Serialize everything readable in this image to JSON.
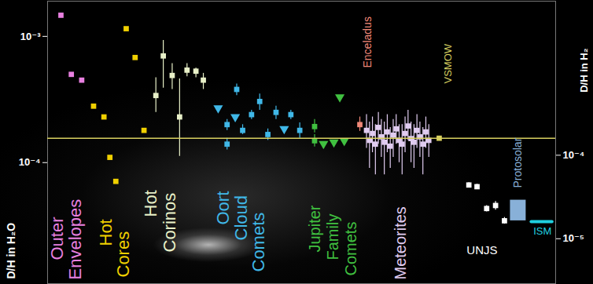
{
  "chart_data": {
    "type": "scatter",
    "log": "y",
    "grid": false,
    "tick_labels": "y",
    "xlim": [
      60,
      745
    ],
    "ylim": [
      1.1e-05,
      0.0019
    ],
    "yticks": [
      {
        "value": 0.001,
        "label": "10⁻³"
      },
      {
        "value": 0.0001,
        "label": "10⁻⁴"
      }
    ],
    "ylabel": "D/H in H₂O",
    "y2lim": [
      2.9e-06,
      0.007
    ],
    "y2ticks": [
      {
        "value": 0.0001,
        "label": "10⁻⁴"
      },
      {
        "value": 1e-05,
        "label": "10⁻⁵"
      }
    ],
    "y2label": "D/H in H₂",
    "series": [
      {
        "name": "Outer Envelopes",
        "color": "#e880e0",
        "marker": "square",
        "x": [
          78,
          92,
          106
        ],
        "values": [
          0.00147,
          0.0005,
          0.00045
        ]
      },
      {
        "name": "Hot Cores",
        "color": "#f0d000",
        "marker": "square",
        "x": [
          122,
          136,
          144,
          152,
          166,
          178,
          190
        ],
        "values": [
          0.00028,
          0.00023,
          0.00011,
          7.1e-05,
          0.00115,
          0.00068,
          0.00018
        ]
      },
      {
        "name": "Hot Corinos",
        "color": "#e8f0c8",
        "marker": "square",
        "x": [
          206,
          216,
          228,
          238,
          248,
          260,
          270
        ],
        "values": [
          0.00034,
          0.0007,
          0.00049,
          0.00023,
          0.00054,
          0.00053,
          0.00045
        ],
        "low": [
          0.00025,
          0.00039,
          0.00038,
          0.000112,
          0.00048,
          0.00047,
          0.00038
        ],
        "high": [
          0.00047,
          0.00093,
          0.00061,
          0.00046,
          0.00061,
          0.00056,
          0.00051
        ]
      },
      {
        "name": "Oort Cloud Comets",
        "color": "#40b8e8",
        "marker": "square",
        "x": [
          302,
          302,
          315,
          323,
          335,
          346,
          357,
          368,
          388,
          400
        ],
        "values": [
          0.0002,
          0.00014,
          0.00038,
          0.00018,
          0.00024,
          0.000305,
          0.000167,
          0.00025,
          0.00024,
          0.00018
        ],
        "low": [
          0.00018,
          0.000126,
          0.00034,
          0.000167,
          0.00022,
          0.00026,
          0.00015,
          0.00022,
          0.00022,
          0.000156
        ],
        "high": [
          0.00022,
          0.000156,
          0.00042,
          0.0002,
          0.00026,
          0.00035,
          0.000185,
          0.00028,
          0.00026,
          0.000207
        ]
      },
      {
        "name": "Oort Cloud Comets",
        "color": "#40b8e8",
        "marker": "triangle-down",
        "x": [
          290,
          313,
          379
        ],
        "values": [
          0.00027,
          0.00023,
          0.000185
        ]
      },
      {
        "name": "Jupiter Family Comets",
        "color": "#40c040",
        "marker": "square",
        "x": [
          420,
          420
        ],
        "values": [
          0.000193,
          0.000149
        ],
        "low": [
          0.000172,
          0.000133
        ],
        "high": [
          0.00022,
          0.000167
        ]
      },
      {
        "name": "Jupiter Family Comets",
        "color": "#40c040",
        "marker": "triangle-down",
        "x": [
          432,
          446,
          454,
          460
        ],
        "values": [
          0.000141,
          0.000145,
          0.00033,
          0.000149
        ]
      },
      {
        "name": "Enceladus",
        "color": "#f08878",
        "marker": "square",
        "x": [
          481
        ],
        "values": [
          0.0002
        ],
        "low": [
          0.000177
        ],
        "high": [
          0.00023
        ]
      },
      {
        "name": "Meteorites",
        "color": "#e0ccf0",
        "marker": "square",
        "x": [
          490,
          494,
          498,
          502,
          506,
          510,
          514,
          518,
          522,
          526,
          530,
          534,
          538,
          542,
          546,
          550,
          554,
          558,
          562,
          566,
          570,
          574
        ],
        "values": [
          0.00018,
          0.00015,
          0.00017,
          0.00014,
          0.00019,
          0.00016,
          0.000145,
          0.000175,
          0.000135,
          0.000165,
          0.000185,
          0.00015,
          0.00014,
          0.00017,
          0.000195,
          0.000155,
          0.000145,
          0.00018,
          0.00016,
          0.00014,
          0.000175,
          0.00015
        ],
        "low": [
          0.00013,
          9e-05,
          0.00012,
          8e-05,
          0.00014,
          0.00011,
          8e-05,
          0.00012,
          9e-05,
          0.00011,
          0.00014,
          0.0001,
          8e-05,
          0.00012,
          0.00015,
          0.0001,
          9e-05,
          0.00013,
          0.00011,
          8e-05,
          0.00013,
          0.00011
        ],
        "high": [
          0.00024,
          0.00021,
          0.00023,
          0.0002,
          0.00025,
          0.00022,
          0.00021,
          0.00024,
          0.00019,
          0.00022,
          0.00024,
          0.0002,
          0.0002,
          0.00023,
          0.00026,
          0.00021,
          0.0002,
          0.00024,
          0.00021,
          0.00019,
          0.00023,
          0.0002
        ]
      },
      {
        "name": "VSMOW",
        "color": "#d8d060",
        "type": "rule",
        "marker": "square",
        "x": [
          588
        ],
        "values": [
          0.000156
        ]
      },
      {
        "name": "UNJS",
        "color": "#ffffff",
        "marker": "square",
        "axis": "y2",
        "x": [
          628,
          639,
          652,
          664,
          676
        ],
        "values": [
          4.4e-05,
          4.2e-05,
          2.3e-05,
          2.5e-05,
          1.64e-05
        ],
        "low": [
          4.1e-05,
          3.9e-05,
          2.1e-05,
          2.2e-05,
          1.5e-05
        ],
        "high": [
          4.7e-05,
          4.5e-05,
          2.5e-05,
          2.8e-05,
          1.8e-05
        ]
      },
      {
        "name": "Protosolar",
        "color": "#88b0d8",
        "type": "box",
        "axis": "y2",
        "x": [
          694
        ],
        "values": [
          2.1e-05
        ],
        "low": [
          1.64e-05
        ],
        "high": [
          2.9e-05
        ]
      },
      {
        "name": "ISM",
        "color": "#20d0e0",
        "type": "line",
        "axis": "y2",
        "x": [
          712,
          740
        ],
        "values": [
          1.6e-05,
          1.6e-05
        ]
      }
    ]
  }
}
